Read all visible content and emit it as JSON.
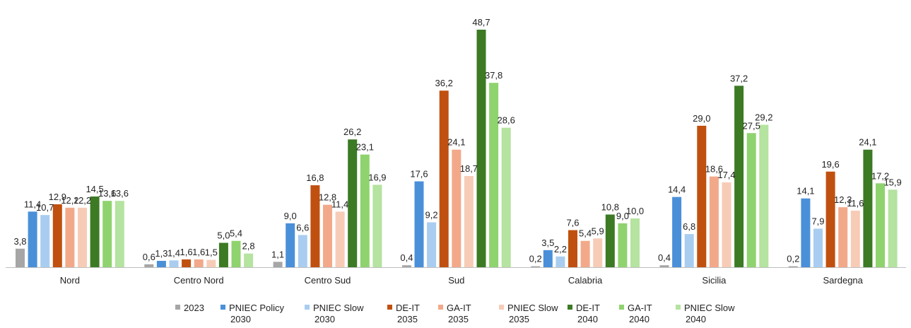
{
  "chart_data": {
    "type": "bar",
    "categories": [
      "Nord",
      "Centro Nord",
      "Centro Sud",
      "Sud",
      "Calabria",
      "Sicilia",
      "Sardegna"
    ],
    "ylim": [
      0,
      50
    ],
    "grid": false,
    "legend_position": "bottom",
    "series": [
      {
        "name": "2023",
        "color": "#a6a6a6",
        "values": [
          3.8,
          0.6,
          1.1,
          0.4,
          0.2,
          0.4,
          0.2
        ],
        "labels": [
          "3,8",
          "0,6",
          "1,1",
          "0,4",
          "0,2",
          "0,4",
          "0,2"
        ]
      },
      {
        "name": "PNIEC Policy 2030",
        "color": "#4a90d9",
        "values": [
          11.4,
          1.3,
          9.0,
          17.6,
          3.5,
          14.4,
          14.1
        ],
        "labels": [
          "11,4",
          "1,3",
          "9,0",
          "17,6",
          "3,5",
          "14,4",
          "14,1"
        ]
      },
      {
        "name": "PNIEC Slow 2030",
        "color": "#a9cdf0",
        "values": [
          10.7,
          1.4,
          6.6,
          9.2,
          2.2,
          6.8,
          7.9
        ],
        "labels": [
          "10,7",
          "1,4",
          "6,6",
          "9,2",
          "2,2",
          "6,8",
          "7,9"
        ]
      },
      {
        "name": "DE-IT 2035",
        "color": "#c0500f",
        "values": [
          12.9,
          1.6,
          16.8,
          36.2,
          7.6,
          29.0,
          19.6
        ],
        "labels": [
          "12,9",
          "1,6",
          "16,8",
          "36,2",
          "7,6",
          "29,0",
          "19,6"
        ]
      },
      {
        "name": "GA-IT 2035",
        "color": "#f2a98a",
        "values": [
          12.2,
          1.6,
          12.8,
          24.1,
          5.4,
          18.6,
          12.3
        ],
        "labels": [
          "12,2",
          "1,6",
          "12,8",
          "24,1",
          "5,4",
          "18,6",
          "12,3"
        ]
      },
      {
        "name": "PNIEC Slow 2035",
        "color": "#f7ccb7",
        "values": [
          12.2,
          1.5,
          11.4,
          18.7,
          5.9,
          17.4,
          11.6
        ],
        "labels": [
          "12,2",
          "1,5",
          "11,4",
          "18,7",
          "5,9",
          "17,4",
          "11,6"
        ]
      },
      {
        "name": "DE-IT 2040",
        "color": "#3c7a24",
        "values": [
          14.5,
          5.0,
          26.2,
          48.7,
          10.8,
          37.2,
          24.1
        ],
        "labels": [
          "14,5",
          "5,0",
          "26,2",
          "48,7",
          "10,8",
          "37,2",
          "24,1"
        ]
      },
      {
        "name": "GA-IT 2040",
        "color": "#8fd36f",
        "values": [
          13.6,
          5.4,
          23.1,
          37.8,
          9.0,
          27.5,
          17.2
        ],
        "labels": [
          "13,6",
          "5,4",
          "23,1",
          "37,8",
          "9,0",
          "27,5",
          "17,2"
        ]
      },
      {
        "name": "PNIEC Slow 2040",
        "color": "#b5e3a0",
        "values": [
          13.6,
          2.8,
          16.9,
          28.6,
          10.0,
          29.2,
          15.9
        ],
        "labels": [
          "13,6",
          "2,8",
          "16,9",
          "28,6",
          "10,0",
          "29,2",
          "15,9"
        ]
      }
    ],
    "legend": [
      [
        "2023"
      ],
      [
        "PNIEC Policy",
        "2030"
      ],
      [
        "PNIEC Slow",
        "2030"
      ],
      [
        "DE-IT",
        "2035"
      ],
      [
        "GA-IT",
        "2035"
      ],
      [
        "PNIEC Slow",
        "2035"
      ],
      [
        "DE-IT",
        "2040"
      ],
      [
        "GA-IT",
        "2040"
      ],
      [
        "PNIEC Slow",
        "2040"
      ]
    ]
  }
}
